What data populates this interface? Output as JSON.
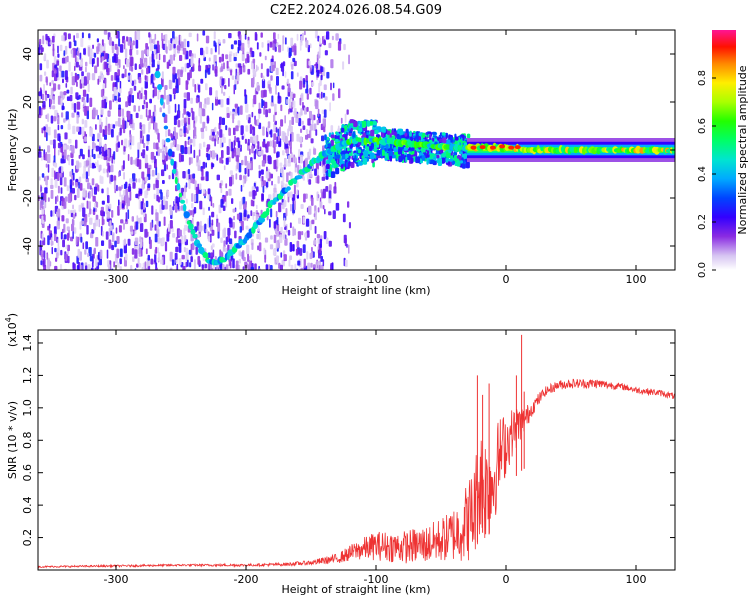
{
  "title": "C2E2.2024.026.08.54.G09",
  "colors": {
    "snr_line": "#ee3333",
    "colormap": [
      "#ffffff",
      "#d6c4f2",
      "#8a2be2",
      "#5a00ff",
      "#0000ff",
      "#0099ff",
      "#00e5e5",
      "#00ff66",
      "#00ff00",
      "#ccff00",
      "#ffff00",
      "#ff9900",
      "#ff0000",
      "#ff1493"
    ]
  },
  "colorbar": {
    "label": "Normalized spectral amplitude",
    "ticks": [
      "0.0",
      "0.2",
      "0.4",
      "0.6",
      "0.8"
    ],
    "tick_values": [
      0.0,
      0.2,
      0.4,
      0.6,
      0.8
    ],
    "range": [
      0,
      1
    ]
  },
  "chart_data": [
    {
      "type": "heatmap",
      "xlabel": "Height of straight line (km)",
      "ylabel": "Frequency (Hz)",
      "xlim": [
        -360,
        130
      ],
      "ylim": [
        -50,
        50
      ],
      "xticks": [
        -300,
        -200,
        -100,
        0,
        100
      ],
      "yticks": [
        -40,
        -20,
        0,
        20,
        40
      ],
      "xtick_labels": [
        "-300",
        "-200",
        "-100",
        "0",
        "100"
      ],
      "ytick_labels": [
        "-40",
        "-20",
        "0",
        "20",
        "40"
      ],
      "frequency_track": {
        "x": [
          -268,
          -262,
          -256,
          -250,
          -244,
          -238,
          -232,
          -226,
          -218,
          -210,
          -200,
          -190,
          -180,
          -170,
          -160,
          -150,
          -140,
          -120,
          -100,
          -80,
          -60,
          -40,
          -20,
          0,
          20,
          60,
          100,
          130
        ],
        "y": [
          32,
          10,
          -8,
          -20,
          -30,
          -38,
          -44,
          -47,
          -46,
          -42,
          -37,
          -30,
          -22,
          -17,
          -11,
          -6,
          -2,
          4,
          4,
          3,
          2,
          1,
          1,
          1,
          0,
          0,
          0,
          0
        ]
      },
      "noise_region": {
        "x_from": -360,
        "x_to": -140,
        "density": "high"
      },
      "stable_band": {
        "x_from": -30,
        "x_to": 130,
        "center": 0,
        "amplitude": 0.95
      }
    },
    {
      "type": "line",
      "xlabel": "Height of straight line (km)",
      "ylabel": "SNR (10 * v/v)",
      "exponent_label": "(x10",
      "exponent_power": "4",
      "exponent_close": ")",
      "xlim": [
        -360,
        130
      ],
      "ylim": [
        0,
        1.48
      ],
      "xticks": [
        -300,
        -200,
        -100,
        0,
        100
      ],
      "yticks": [
        0.2,
        0.4,
        0.6,
        0.8,
        1.0,
        1.2,
        1.4
      ],
      "xtick_labels": [
        "-300",
        "-200",
        "-100",
        "0",
        "100"
      ],
      "ytick_labels": [
        "0.2",
        "0.4",
        "0.6",
        "0.8",
        "1.0",
        "1.2",
        "1.4"
      ],
      "series": [
        {
          "x": [
            -360,
            -300,
            -250,
            -200,
            -170,
            -150,
            -130,
            -115,
            -100,
            -80,
            -60,
            -45,
            -35,
            -25,
            -20,
            -15,
            -10,
            -5,
            0,
            5,
            10,
            15,
            20,
            25,
            30,
            40,
            50,
            60,
            70,
            80,
            90,
            100,
            110,
            120,
            130
          ],
          "y": [
            0.02,
            0.025,
            0.03,
            0.03,
            0.035,
            0.045,
            0.07,
            0.12,
            0.15,
            0.14,
            0.16,
            0.2,
            0.25,
            0.35,
            0.55,
            0.5,
            0.55,
            0.7,
            0.78,
            0.85,
            0.9,
            0.93,
            1.0,
            1.05,
            1.1,
            1.14,
            1.15,
            1.15,
            1.15,
            1.14,
            1.13,
            1.11,
            1.1,
            1.09,
            1.07
          ],
          "spread": [
            0.005,
            0.006,
            0.006,
            0.008,
            0.01,
            0.015,
            0.03,
            0.06,
            0.09,
            0.1,
            0.12,
            0.15,
            0.2,
            0.3,
            0.35,
            0.35,
            0.3,
            0.25,
            0.2,
            0.15,
            0.12,
            0.08,
            0.05,
            0.04,
            0.03,
            0.03,
            0.03,
            0.03,
            0.03,
            0.025,
            0.02,
            0.02,
            0.02,
            0.02,
            0.02
          ],
          "spikes": [
            {
              "x": -22,
              "y": 1.2
            },
            {
              "x": -18,
              "y": 1.08
            },
            {
              "x": -13,
              "y": 1.15
            },
            {
              "x": 8,
              "y": 1.2
            },
            {
              "x": 12,
              "y": 1.45
            },
            {
              "x": 14,
              "y": 1.1
            }
          ]
        }
      ]
    }
  ]
}
